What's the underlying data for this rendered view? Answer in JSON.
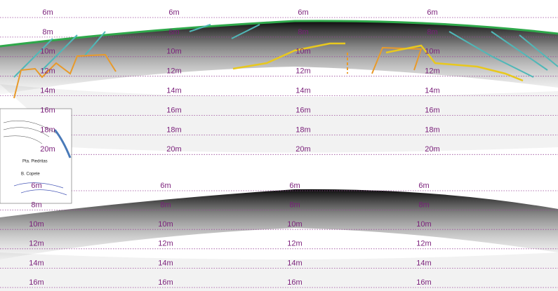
{
  "top_panel": {
    "depth_labels": [
      "6m",
      "8m",
      "10m",
      "12m",
      "14m",
      "16m",
      "18m",
      "20m"
    ]
  },
  "bottom_panel": {
    "depth_labels": [
      "6m",
      "8m",
      "10m",
      "12m",
      "14m",
      "16m"
    ]
  },
  "inset_map": {
    "labels": [
      "Pta. Piedritas",
      "B. Copete"
    ]
  }
}
